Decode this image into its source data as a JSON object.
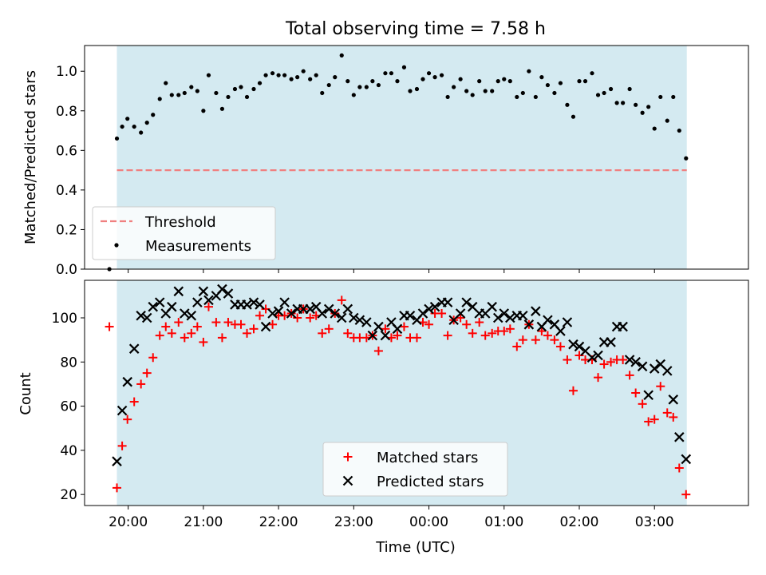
{
  "chart_data": [
    {
      "type": "scatter",
      "title": "Total observing time = 7.58 h",
      "xlabel": "",
      "ylabel": "Matched/Predicted stars",
      "ylim": [
        0,
        1.13
      ],
      "yticks": [
        0.0,
        0.2,
        0.4,
        0.6,
        0.8,
        1.0
      ],
      "ytick_labels": [
        "0.0",
        "0.2",
        "0.4",
        "0.6",
        "0.8",
        "1.0"
      ],
      "shaded_x_range": [
        19.85,
        27.43
      ],
      "threshold": 0.5,
      "colors": {
        "shade": "#d4eaf1",
        "threshold": "#f08080",
        "points": "#000000"
      },
      "legend": {
        "placement": "lower-left",
        "entries": [
          {
            "label": "Threshold",
            "marker": "dashed-line"
          },
          {
            "label": "Measurements",
            "marker": "dot"
          }
        ]
      },
      "series": [
        {
          "name": "Measurements",
          "x": [
            19.75,
            19.85,
            19.92,
            19.99,
            20.08,
            20.17,
            20.25,
            20.33,
            20.42,
            20.5,
            20.58,
            20.67,
            20.75,
            20.84,
            20.92,
            21.0,
            21.07,
            21.17,
            21.25,
            21.33,
            21.42,
            21.5,
            21.58,
            21.67,
            21.75,
            21.83,
            21.92,
            22.0,
            22.08,
            22.17,
            22.25,
            22.33,
            22.42,
            22.5,
            22.58,
            22.67,
            22.75,
            22.84,
            22.92,
            23.0,
            23.08,
            23.17,
            23.25,
            23.33,
            23.42,
            23.5,
            23.58,
            23.67,
            23.75,
            23.84,
            23.92,
            24.0,
            24.08,
            24.17,
            24.25,
            24.33,
            24.42,
            24.5,
            24.58,
            24.67,
            24.75,
            24.84,
            24.92,
            25.0,
            25.08,
            25.17,
            25.25,
            25.33,
            25.42,
            25.5,
            25.58,
            25.67,
            25.75,
            25.84,
            25.92,
            26.0,
            26.08,
            26.17,
            26.25,
            26.33,
            26.42,
            26.5,
            26.58,
            26.67,
            26.75,
            26.84,
            26.92,
            27.0,
            27.08,
            27.17,
            27.25,
            27.33,
            27.42
          ],
          "y": [
            0.0,
            0.66,
            0.72,
            0.76,
            0.72,
            0.69,
            0.74,
            0.78,
            0.86,
            0.94,
            0.88,
            0.88,
            0.89,
            0.92,
            0.9,
            0.8,
            0.98,
            0.89,
            0.81,
            0.87,
            0.91,
            0.92,
            0.87,
            0.91,
            0.94,
            0.98,
            0.99,
            0.98,
            0.98,
            0.96,
            0.97,
            1.0,
            0.96,
            0.98,
            0.89,
            0.93,
            0.97,
            1.08,
            0.95,
            0.88,
            0.92,
            0.92,
            0.95,
            0.93,
            0.99,
            0.99,
            0.95,
            1.02,
            0.9,
            0.91,
            0.96,
            0.99,
            0.97,
            0.98,
            0.87,
            0.92,
            0.96,
            0.9,
            0.88,
            0.95,
            0.9,
            0.9,
            0.95,
            0.96,
            0.95,
            0.87,
            0.89,
            1.0,
            0.87,
            0.97,
            0.93,
            0.89,
            0.94,
            0.83,
            0.77,
            0.95,
            0.95,
            0.99,
            0.88,
            0.89,
            0.91,
            0.84,
            0.84,
            0.91,
            0.83,
            0.79,
            0.82,
            0.71,
            0.87,
            0.75,
            0.87,
            0.7,
            0.56
          ]
        }
      ]
    },
    {
      "type": "scatter",
      "title": "",
      "xlabel": "Time (UTC)",
      "ylabel": "Count",
      "ylim": [
        15,
        117
      ],
      "yticks": [
        20,
        40,
        60,
        80,
        100
      ],
      "ytick_labels": [
        "20",
        "40",
        "60",
        "80",
        "100"
      ],
      "xlim": [
        19.42,
        28.25
      ],
      "xticks": [
        20,
        21,
        22,
        23,
        24,
        25,
        26,
        27
      ],
      "xtick_labels": [
        "20:00",
        "21:00",
        "22:00",
        "23:00",
        "00:00",
        "01:00",
        "02:00",
        "03:00"
      ],
      "shaded_x_range": [
        19.85,
        27.43
      ],
      "colors": {
        "shade": "#d4eaf1",
        "matched": "#ff0000",
        "predicted": "#000000"
      },
      "legend": {
        "placement": "lower-center",
        "entries": [
          {
            "label": "Matched stars",
            "marker": "plus"
          },
          {
            "label": "Predicted stars",
            "marker": "x"
          }
        ]
      },
      "series": [
        {
          "name": "Matched stars",
          "x": [
            19.75,
            19.85,
            19.92,
            19.99,
            20.08,
            20.17,
            20.25,
            20.33,
            20.42,
            20.5,
            20.58,
            20.67,
            20.75,
            20.84,
            20.92,
            21.0,
            21.07,
            21.17,
            21.25,
            21.33,
            21.42,
            21.5,
            21.58,
            21.67,
            21.75,
            21.83,
            21.92,
            22.0,
            22.08,
            22.17,
            22.25,
            22.33,
            22.42,
            22.5,
            22.58,
            22.67,
            22.75,
            22.84,
            22.92,
            23.0,
            23.08,
            23.17,
            23.25,
            23.33,
            23.42,
            23.5,
            23.58,
            23.67,
            23.75,
            23.84,
            23.92,
            24.0,
            24.08,
            24.17,
            24.25,
            24.33,
            24.42,
            24.5,
            24.58,
            24.67,
            24.75,
            24.84,
            24.92,
            25.0,
            25.08,
            25.17,
            25.25,
            25.33,
            25.42,
            25.5,
            25.58,
            25.67,
            25.75,
            25.84,
            25.92,
            26.0,
            26.08,
            26.17,
            26.25,
            26.33,
            26.42,
            26.5,
            26.58,
            26.67,
            26.75,
            26.84,
            26.92,
            27.0,
            27.08,
            27.17,
            27.25,
            27.33,
            27.42
          ],
          "y": [
            96,
            23,
            42,
            54,
            62,
            70,
            75,
            82,
            92,
            96,
            93,
            98,
            91,
            93,
            96,
            89,
            105,
            98,
            91,
            98,
            97,
            97,
            93,
            95,
            101,
            104,
            97,
            101,
            101,
            102,
            100,
            104,
            100,
            101,
            93,
            95,
            102,
            108,
            93,
            91,
            91,
            91,
            92,
            85,
            95,
            91,
            92,
            96,
            91,
            91,
            98,
            97,
            102,
            102,
            92,
            99,
            100,
            97,
            93,
            98,
            92,
            93,
            94,
            94,
            95,
            87,
            90,
            97,
            90,
            94,
            92,
            90,
            87,
            81,
            67,
            83,
            81,
            81,
            73,
            79,
            80,
            81,
            81,
            74,
            66,
            61,
            53,
            54,
            69,
            57,
            55,
            32,
            20
          ]
        },
        {
          "name": "Predicted stars",
          "x": [
            19.85,
            19.92,
            19.99,
            20.08,
            20.17,
            20.25,
            20.33,
            20.42,
            20.5,
            20.58,
            20.67,
            20.75,
            20.84,
            20.92,
            21.0,
            21.07,
            21.17,
            21.25,
            21.33,
            21.42,
            21.5,
            21.58,
            21.67,
            21.75,
            21.83,
            21.92,
            22.0,
            22.08,
            22.17,
            22.25,
            22.33,
            22.42,
            22.5,
            22.58,
            22.67,
            22.75,
            22.84,
            22.92,
            23.0,
            23.08,
            23.17,
            23.25,
            23.33,
            23.42,
            23.5,
            23.58,
            23.67,
            23.75,
            23.84,
            23.92,
            24.0,
            24.08,
            24.17,
            24.25,
            24.33,
            24.42,
            24.5,
            24.58,
            24.67,
            24.75,
            24.84,
            24.92,
            25.0,
            25.08,
            25.17,
            25.25,
            25.33,
            25.42,
            25.5,
            25.58,
            25.67,
            25.75,
            25.84,
            25.92,
            26.0,
            26.08,
            26.17,
            26.25,
            26.33,
            26.42,
            26.5,
            26.58,
            26.67,
            26.75,
            26.84,
            26.92,
            27.0,
            27.08,
            27.17,
            27.25,
            27.33,
            27.42
          ],
          "y": [
            35,
            58,
            71,
            86,
            101,
            100,
            105,
            107,
            102,
            105,
            112,
            102,
            101,
            107,
            112,
            108,
            110,
            113,
            111,
            106,
            106,
            106,
            107,
            106,
            96,
            102,
            103,
            107,
            102,
            104,
            104,
            104,
            105,
            102,
            104,
            102,
            100,
            104,
            100,
            99,
            98,
            92,
            96,
            92,
            98,
            95,
            101,
            101,
            99,
            102,
            104,
            105,
            107,
            107,
            99,
            102,
            107,
            105,
            102,
            102,
            105,
            100,
            102,
            100,
            101,
            101,
            97,
            103,
            96,
            99,
            97,
            94,
            98,
            88,
            87,
            85,
            82,
            83,
            89,
            89,
            96,
            96,
            81,
            80,
            78,
            65,
            77,
            79,
            76,
            63,
            46,
            36
          ]
        }
      ]
    }
  ]
}
